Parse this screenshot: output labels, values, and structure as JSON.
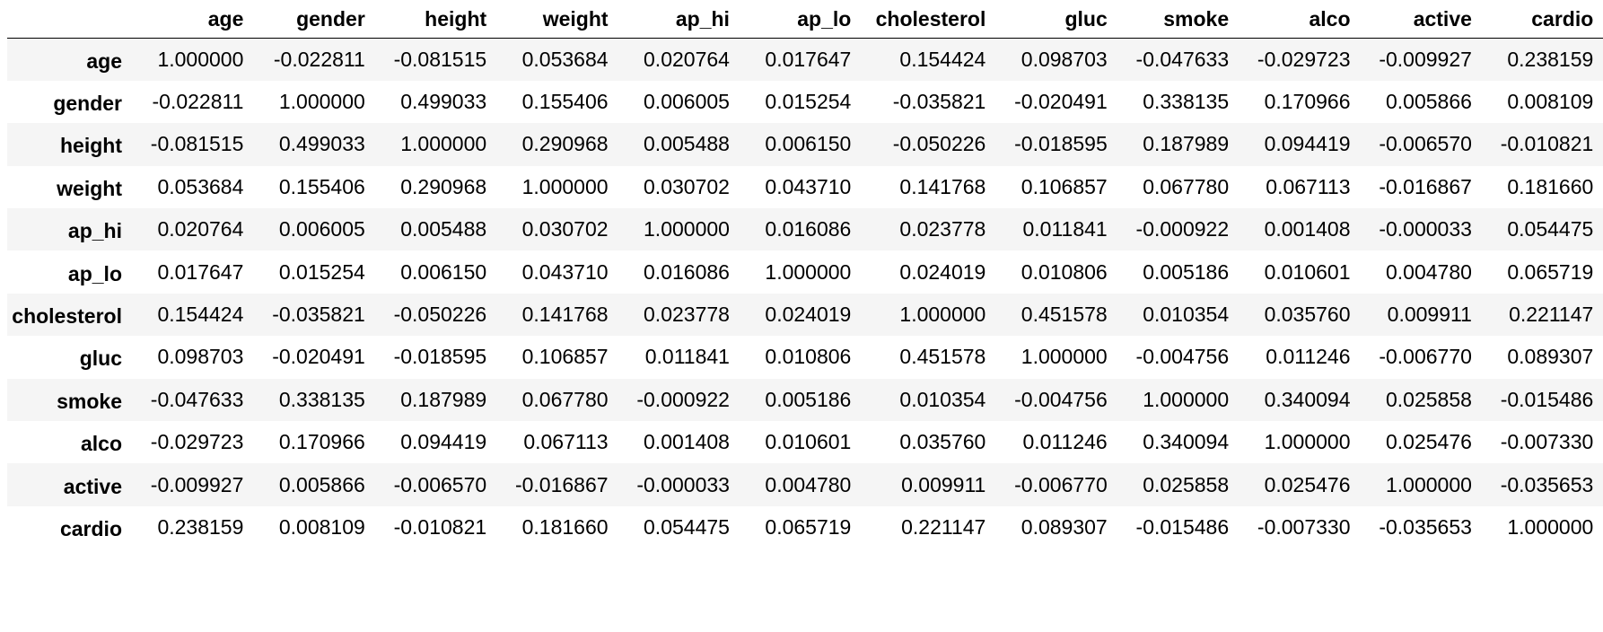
{
  "table": {
    "columns": [
      "age",
      "gender",
      "height",
      "weight",
      "ap_hi",
      "ap_lo",
      "cholesterol",
      "gluc",
      "smoke",
      "alco",
      "active",
      "cardio"
    ],
    "rows": [
      {
        "label": "age",
        "values": [
          "1.000000",
          "-0.022811",
          "-0.081515",
          "0.053684",
          "0.020764",
          "0.017647",
          "0.154424",
          "0.098703",
          "-0.047633",
          "-0.029723",
          "-0.009927",
          "0.238159"
        ]
      },
      {
        "label": "gender",
        "values": [
          "-0.022811",
          "1.000000",
          "0.499033",
          "0.155406",
          "0.006005",
          "0.015254",
          "-0.035821",
          "-0.020491",
          "0.338135",
          "0.170966",
          "0.005866",
          "0.008109"
        ]
      },
      {
        "label": "height",
        "values": [
          "-0.081515",
          "0.499033",
          "1.000000",
          "0.290968",
          "0.005488",
          "0.006150",
          "-0.050226",
          "-0.018595",
          "0.187989",
          "0.094419",
          "-0.006570",
          "-0.010821"
        ]
      },
      {
        "label": "weight",
        "values": [
          "0.053684",
          "0.155406",
          "0.290968",
          "1.000000",
          "0.030702",
          "0.043710",
          "0.141768",
          "0.106857",
          "0.067780",
          "0.067113",
          "-0.016867",
          "0.181660"
        ]
      },
      {
        "label": "ap_hi",
        "values": [
          "0.020764",
          "0.006005",
          "0.005488",
          "0.030702",
          "1.000000",
          "0.016086",
          "0.023778",
          "0.011841",
          "-0.000922",
          "0.001408",
          "-0.000033",
          "0.054475"
        ]
      },
      {
        "label": "ap_lo",
        "values": [
          "0.017647",
          "0.015254",
          "0.006150",
          "0.043710",
          "0.016086",
          "1.000000",
          "0.024019",
          "0.010806",
          "0.005186",
          "0.010601",
          "0.004780",
          "0.065719"
        ]
      },
      {
        "label": "cholesterol",
        "values": [
          "0.154424",
          "-0.035821",
          "-0.050226",
          "0.141768",
          "0.023778",
          "0.024019",
          "1.000000",
          "0.451578",
          "0.010354",
          "0.035760",
          "0.009911",
          "0.221147"
        ]
      },
      {
        "label": "gluc",
        "values": [
          "0.098703",
          "-0.020491",
          "-0.018595",
          "0.106857",
          "0.011841",
          "0.010806",
          "0.451578",
          "1.000000",
          "-0.004756",
          "0.011246",
          "-0.006770",
          "0.089307"
        ]
      },
      {
        "label": "smoke",
        "values": [
          "-0.047633",
          "0.338135",
          "0.187989",
          "0.067780",
          "-0.000922",
          "0.005186",
          "0.010354",
          "-0.004756",
          "1.000000",
          "0.340094",
          "0.025858",
          "-0.015486"
        ]
      },
      {
        "label": "alco",
        "values": [
          "-0.029723",
          "0.170966",
          "0.094419",
          "0.067113",
          "0.001408",
          "0.010601",
          "0.035760",
          "0.011246",
          "0.340094",
          "1.000000",
          "0.025476",
          "-0.007330"
        ]
      },
      {
        "label": "active",
        "values": [
          "-0.009927",
          "0.005866",
          "-0.006570",
          "-0.016867",
          "-0.000033",
          "0.004780",
          "0.009911",
          "-0.006770",
          "0.025858",
          "0.025476",
          "1.000000",
          "-0.035653"
        ]
      },
      {
        "label": "cardio",
        "values": [
          "0.238159",
          "0.008109",
          "-0.010821",
          "0.181660",
          "0.054475",
          "0.065719",
          "0.221147",
          "0.089307",
          "-0.015486",
          "-0.007330",
          "-0.035653",
          "1.000000"
        ]
      }
    ]
  },
  "colors": {
    "stripe": "#f5f5f5",
    "background": "#ffffff",
    "text": "#000000",
    "rule": "#000000"
  }
}
